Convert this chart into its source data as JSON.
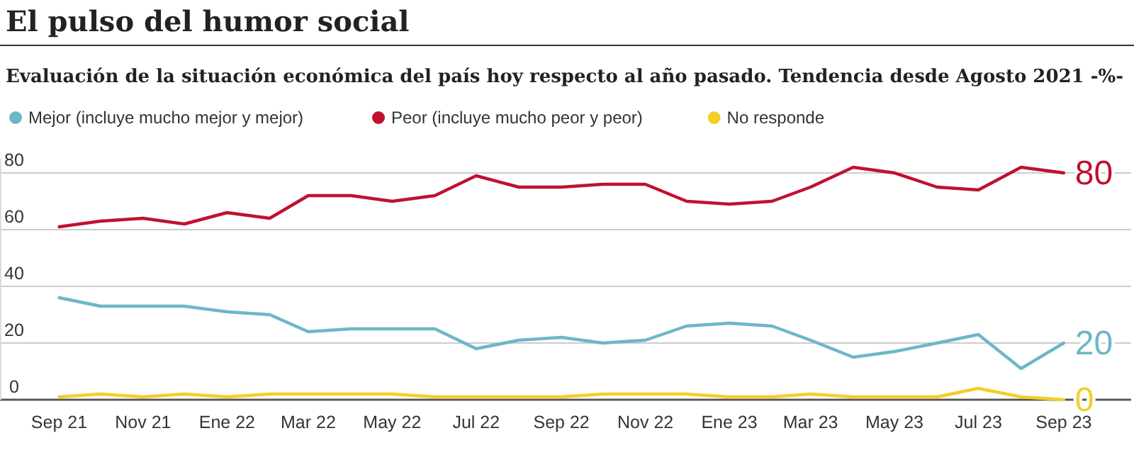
{
  "chart_data": {
    "type": "line",
    "title": "El pulso del humor social",
    "subtitle": "Evaluación de la situación económica del país hoy respecto al año pasado. Tendencia desde Agosto 2021 -%-",
    "x": [
      "2021-09",
      "2021-10",
      "2021-11",
      "2021-12",
      "2022-01",
      "2022-02",
      "2022-03",
      "2022-04",
      "2022-05",
      "2022-06",
      "2022-07",
      "2022-08",
      "2022-09",
      "2022-10",
      "2022-11",
      "2022-12",
      "2023-01",
      "2023-02",
      "2023-03",
      "2023-04",
      "2023-05",
      "2023-06",
      "2023-07",
      "2023-08",
      "2023-09"
    ],
    "series": [
      {
        "name": "Mejor (incluye mucho mejor y mejor)",
        "color": "#6cb7c6",
        "values": [
          36,
          33,
          33,
          33,
          31,
          30,
          24,
          25,
          25,
          25,
          18,
          21,
          22,
          20,
          21,
          26,
          27,
          26,
          21,
          15,
          17,
          20,
          23,
          11,
          20
        ],
        "value_labels": [
          null,
          null,
          null,
          null,
          null,
          null,
          null,
          null,
          null,
          null,
          null,
          null,
          null,
          null,
          null,
          null,
          null,
          null,
          null,
          null,
          null,
          null,
          null,
          null,
          "20"
        ]
      },
      {
        "name": "Peor (incluye mucho peor y peor)",
        "color": "#c0112f",
        "values": [
          61,
          63,
          64,
          62,
          66,
          64,
          72,
          72,
          70,
          72,
          79,
          75,
          75,
          76,
          76,
          70,
          69,
          70,
          75,
          82,
          80,
          75,
          74,
          82,
          80
        ],
        "value_labels": [
          null,
          null,
          null,
          null,
          null,
          null,
          null,
          null,
          null,
          null,
          null,
          null,
          null,
          null,
          null,
          null,
          null,
          null,
          null,
          null,
          null,
          null,
          null,
          null,
          "80"
        ]
      },
      {
        "name": "No responde",
        "color": "#f1cf2a",
        "values": [
          1,
          2,
          1,
          2,
          1,
          2,
          2,
          2,
          2,
          1,
          1,
          1,
          1,
          2,
          2,
          2,
          1,
          1,
          2,
          1,
          1,
          1,
          4,
          1,
          0
        ],
        "value_labels": [
          null,
          null,
          null,
          null,
          null,
          null,
          null,
          null,
          null,
          null,
          null,
          null,
          null,
          null,
          null,
          null,
          null,
          null,
          null,
          null,
          null,
          null,
          null,
          null,
          "0"
        ]
      }
    ],
    "xlim": [
      "2021-07-20",
      "2023-10-20"
    ],
    "xticks": [
      {
        "value": "2021-09",
        "label": "Sep 21"
      },
      {
        "value": "2021-11",
        "label": "Nov 21"
      },
      {
        "value": "2022-01",
        "label": "Ene 22"
      },
      {
        "value": "2022-03",
        "label": "Mar 22"
      },
      {
        "value": "2022-05",
        "label": "May 22"
      },
      {
        "value": "2022-07",
        "label": "Jul 22"
      },
      {
        "value": "2022-09",
        "label": "Sep 22"
      },
      {
        "value": "2022-11",
        "label": "Nov 22"
      },
      {
        "value": "2023-01",
        "label": "Ene 23"
      },
      {
        "value": "2023-03",
        "label": "Mar 23"
      },
      {
        "value": "2023-05",
        "label": "May 23"
      },
      {
        "value": "2023-07",
        "label": "Jul 23"
      },
      {
        "value": "2023-09",
        "label": "Sep 23"
      }
    ],
    "ylim": [
      0,
      85
    ],
    "yticks": [
      0,
      20,
      40,
      60,
      80
    ],
    "grid": "y",
    "legend": "top left",
    "marker": "none",
    "line_style": "solid"
  }
}
